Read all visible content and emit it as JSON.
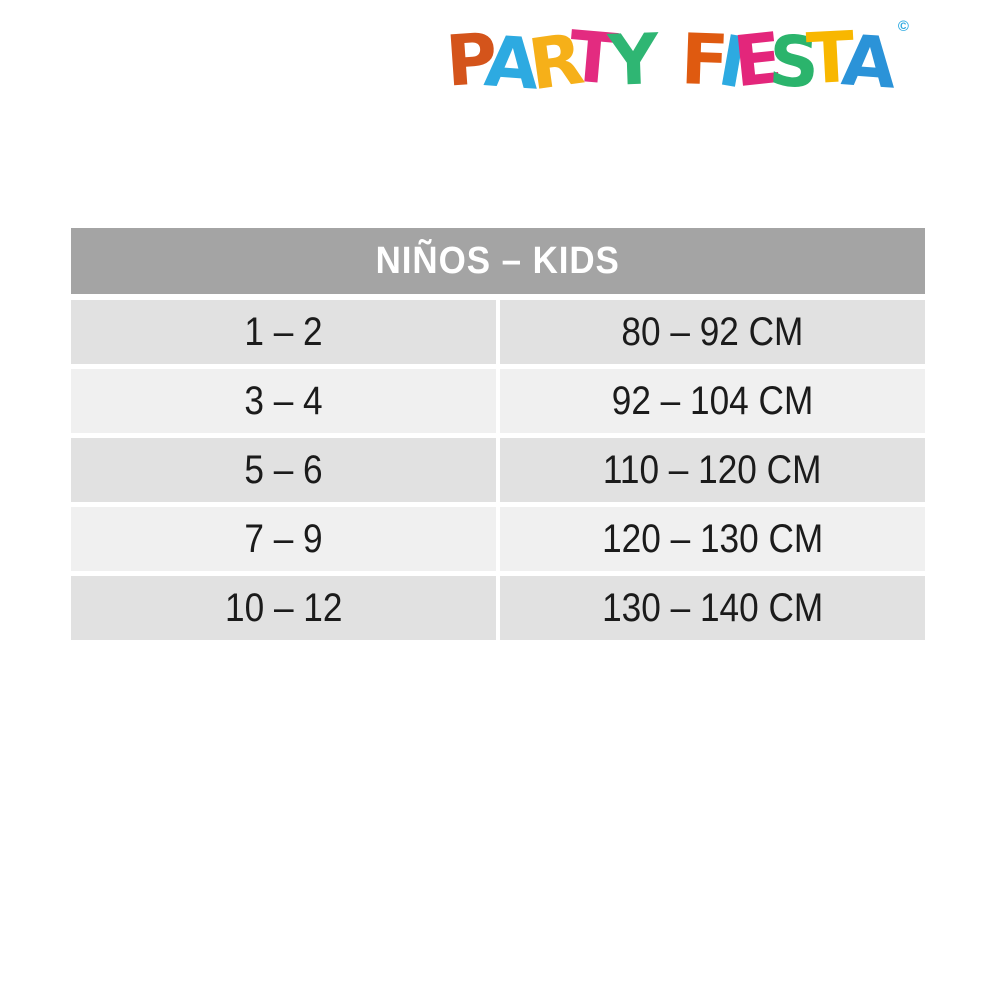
{
  "logo": {
    "copyright": "©",
    "letters": [
      {
        "ch": "P",
        "color": "#d4541b"
      },
      {
        "ch": "A",
        "color": "#2daae1"
      },
      {
        "ch": "R",
        "color": "#f6b019"
      },
      {
        "ch": "T",
        "color": "#e32b80"
      },
      {
        "ch": "Y",
        "color": "#2fb673"
      },
      {
        "ch": "F",
        "color": "#df5a10"
      },
      {
        "ch": "I",
        "color": "#2daae1"
      },
      {
        "ch": "E",
        "color": "#e3267b"
      },
      {
        "ch": "S",
        "color": "#2bb46c"
      },
      {
        "ch": "T",
        "color": "#f8b700"
      },
      {
        "ch": "A",
        "color": "#2b93d8"
      }
    ]
  },
  "table": {
    "header": "NIÑOS – KIDS",
    "rows": [
      {
        "age": "1 – 2",
        "height": "80 – 92 CM"
      },
      {
        "age": "3 – 4",
        "height": "92 – 104 CM"
      },
      {
        "age": "5 – 6",
        "height": "110 – 120 CM"
      },
      {
        "age": "7 – 9",
        "height": "120 – 130 CM"
      },
      {
        "age": "10 – 12",
        "height": "130 – 140 CM"
      }
    ]
  },
  "colors": {
    "header_bg": "#a4a4a4",
    "row_dark": "#e1e1e1",
    "row_light": "#f0f0f0",
    "header_text": "#ffffff",
    "cell_text": "#1b1b1b",
    "copyright": "#2daae1"
  },
  "chart_data": {
    "type": "table",
    "title": "NIÑOS – KIDS",
    "columns": [
      "age_years",
      "height_cm"
    ],
    "rows": [
      [
        "1 – 2",
        "80 – 92 CM"
      ],
      [
        "3 – 4",
        "92 – 104 CM"
      ],
      [
        "5 – 6",
        "110 – 120 CM"
      ],
      [
        "7 – 9",
        "120 – 130 CM"
      ],
      [
        "10 – 12",
        "130 – 140 CM"
      ]
    ],
    "layout": {
      "header_merged": true,
      "grid": "white gaps between cells",
      "legend": "none"
    }
  }
}
